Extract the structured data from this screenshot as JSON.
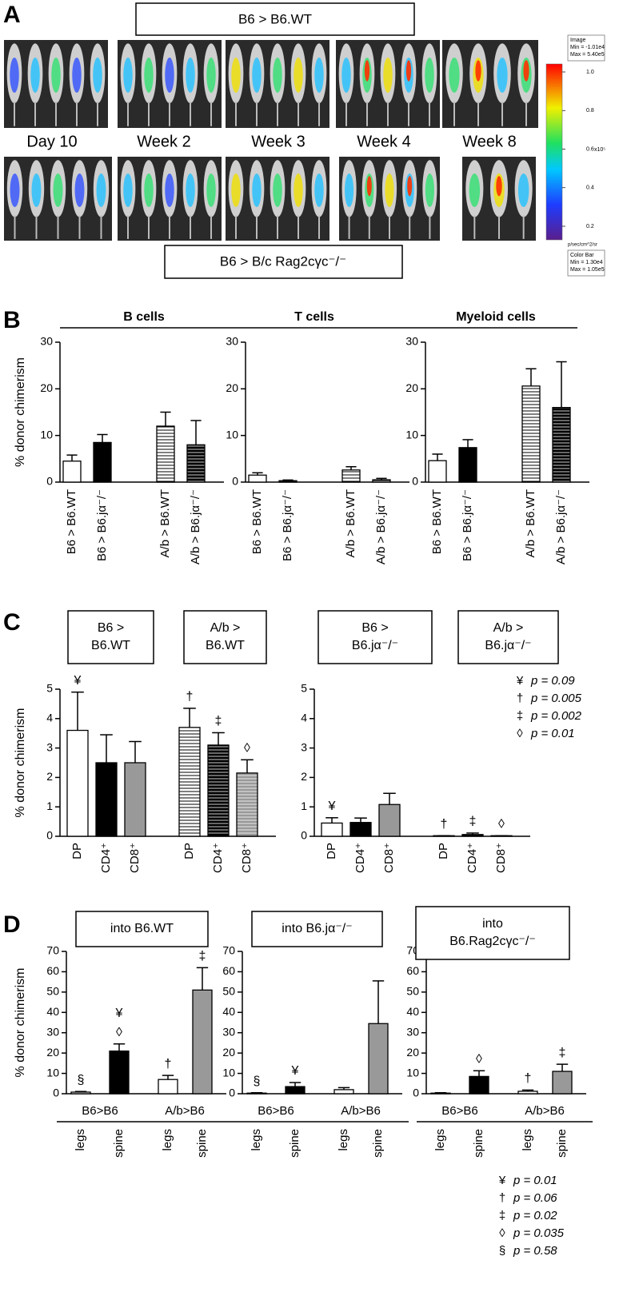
{
  "panel_labels": [
    "A",
    "B",
    "C",
    "D"
  ],
  "panel_a": {
    "top_box": "B6 > B6.WT",
    "timepoints": [
      "Day 10",
      "Week 2",
      "Week 3",
      "Week 4",
      "Week 8"
    ],
    "bottom_box": "B6 > B/c Rag2cγc⁻/⁻",
    "colorbar": {
      "image_box": [
        "Image",
        "Min = -1.01e4",
        "Max = 5.40e5"
      ],
      "ticks": [
        {
          "value": 1,
          "label": "1.0"
        },
        0.8,
        0.6,
        0.4,
        0.2
      ],
      "exponent": "x10⁵",
      "unit": "p/sec/cm^2/sr",
      "bar_box": [
        "Color Bar",
        "Min = 1.30e4",
        "Max = 1.05e5"
      ]
    }
  },
  "chart_data": [
    {
      "type": "bar",
      "title": "B cells",
      "y_label": "% donor chimerism",
      "categories": [
        "B6 > B6.WT",
        "B6 > B6.jα⁻/⁻",
        "A/b > B6.WT",
        "A/b > B6.jα⁻/⁻"
      ],
      "values": [
        4.5,
        8.5,
        12,
        8
      ],
      "errors": [
        1.3,
        1.7,
        3,
        5.2
      ],
      "fills": [
        "#ffffff",
        "#000000",
        "#ffffff",
        "#000000"
      ],
      "hatch": [
        false,
        false,
        true,
        true
      ],
      "ylim": [
        0,
        30
      ],
      "yticks": [
        0,
        10,
        20,
        30
      ]
    },
    {
      "type": "bar",
      "title": "T cells",
      "categories": [
        "B6 > B6.WT",
        "B6 > B6.jα⁻/⁻",
        "A/b > B6.WT",
        "A/b > B6.jα⁻/⁻"
      ],
      "values": [
        1.5,
        0.3,
        2.6,
        0.5
      ],
      "errors": [
        0.5,
        0.15,
        0.7,
        0.3
      ],
      "fills": [
        "#ffffff",
        "#000000",
        "#ffffff",
        "#000000"
      ],
      "hatch": [
        false,
        false,
        true,
        true
      ],
      "ylim": [
        0,
        30
      ],
      "yticks": [
        0,
        10,
        20,
        30
      ]
    },
    {
      "type": "bar",
      "title": "Myeloid cells",
      "categories": [
        "B6 > B6.WT",
        "B6 > B6.jα⁻/⁻",
        "A/b > B6.WT",
        "A/b > B6.jα⁻/⁻"
      ],
      "values": [
        4.6,
        7.4,
        20.6,
        16
      ],
      "errors": [
        1.4,
        1.7,
        3.7,
        9.8
      ],
      "fills": [
        "#ffffff",
        "#000000",
        "#ffffff",
        "#000000"
      ],
      "hatch": [
        false,
        false,
        true,
        true
      ],
      "ylim": [
        0,
        30
      ],
      "yticks": [
        0,
        10,
        20,
        30
      ]
    },
    {
      "type": "bar",
      "y_label": "% donor chimerism",
      "group_titles": [
        [
          "B6 >",
          "B6.WT"
        ],
        [
          "A/b >",
          "B6.WT"
        ]
      ],
      "categories": [
        "DP",
        "CD4⁺",
        "CD8⁺",
        "DP",
        "CD4⁺",
        "CD8⁺"
      ],
      "values": [
        3.6,
        2.5,
        2.5,
        3.7,
        3.1,
        2.15
      ],
      "errors": [
        1.3,
        0.95,
        0.72,
        0.65,
        0.42,
        0.45
      ],
      "fills": [
        "#ffffff",
        "#000000",
        "#999999",
        "#ffffff",
        "#000000",
        "#999999"
      ],
      "hatch": [
        false,
        false,
        false,
        true,
        true,
        true
      ],
      "annotations": [
        [
          "¥"
        ],
        [],
        [],
        [
          "†"
        ],
        [
          "‡"
        ],
        [
          "◊"
        ]
      ],
      "ylim": [
        0,
        5
      ],
      "yticks": [
        0,
        1,
        2,
        3,
        4,
        5
      ]
    },
    {
      "type": "bar",
      "group_titles": [
        [
          "B6 >",
          "B6.jα⁻/⁻"
        ],
        [
          "A/b >",
          "B6.jα⁻/⁻"
        ]
      ],
      "categories": [
        "DP",
        "CD4⁺",
        "CD8⁺",
        "DP",
        "CD4⁺",
        "CD8⁺"
      ],
      "values": [
        0.45,
        0.47,
        1.08,
        0.02,
        0.06,
        0.02
      ],
      "errors": [
        0.18,
        0.15,
        0.38,
        0,
        0.05,
        0
      ],
      "fills": [
        "#ffffff",
        "#000000",
        "#999999",
        "#ffffff",
        "#000000",
        "#999999"
      ],
      "hatch": [
        false,
        false,
        false,
        true,
        true,
        true
      ],
      "annotations": [
        [
          "¥"
        ],
        [],
        [],
        [
          "†"
        ],
        [
          "‡"
        ],
        [
          "◊"
        ]
      ],
      "ylim": [
        0,
        5
      ],
      "yticks": [
        0,
        1,
        2,
        3,
        4,
        5
      ],
      "legend": [
        {
          "symbol": "¥",
          "text": "p = 0.09"
        },
        {
          "symbol": "†",
          "text": "p = 0.005"
        },
        {
          "symbol": "‡",
          "text": "p = 0.002"
        },
        {
          "symbol": "◊",
          "text": "p = 0.01"
        }
      ]
    },
    {
      "type": "bar",
      "title": [
        "into B6.WT"
      ],
      "y_label": "% donor chimerism",
      "groups": [
        "B6>B6",
        "A/b>B6"
      ],
      "categories": [
        "legs",
        "spine",
        "legs",
        "spine"
      ],
      "values": [
        0.8,
        21,
        7,
        51
      ],
      "errors": [
        0.3,
        3.5,
        2,
        11
      ],
      "fills": [
        "#ffffff",
        "#000000",
        "#ffffff",
        "#999999"
      ],
      "hatch": [
        false,
        false,
        false,
        false
      ],
      "annotations": [
        [
          "§"
        ],
        [
          "¥",
          "◊"
        ],
        [
          "†"
        ],
        [
          "‡"
        ]
      ],
      "ylim": [
        0,
        70
      ],
      "yticks": [
        0,
        10,
        20,
        30,
        40,
        50,
        60,
        70
      ]
    },
    {
      "type": "bar",
      "title": [
        "into B6.jα⁻/⁻"
      ],
      "groups": [
        "B6>B6",
        "A/b>B6"
      ],
      "categories": [
        "legs",
        "spine",
        "legs",
        "spine"
      ],
      "values": [
        0.3,
        3.5,
        2,
        34.5
      ],
      "errors": [
        0.2,
        2,
        1,
        21
      ],
      "fills": [
        "#ffffff",
        "#000000",
        "#ffffff",
        "#999999"
      ],
      "hatch": [
        false,
        false,
        false,
        false
      ],
      "annotations": [
        [
          "§"
        ],
        [
          "¥"
        ],
        [],
        []
      ],
      "ylim": [
        0,
        70
      ],
      "yticks": [
        0,
        10,
        20,
        30,
        40,
        50,
        60,
        70
      ]
    },
    {
      "type": "bar",
      "title": [
        "into",
        "B6.Rag2cγc⁻/⁻"
      ],
      "groups": [
        "B6>B6",
        "A/b>B6"
      ],
      "categories": [
        "legs",
        "spine",
        "legs",
        "spine"
      ],
      "values": [
        0.3,
        8.5,
        1.2,
        11
      ],
      "errors": [
        0.2,
        2.8,
        0.6,
        3.5
      ],
      "fills": [
        "#ffffff",
        "#000000",
        "#ffffff",
        "#999999"
      ],
      "hatch": [
        false,
        false,
        false,
        false
      ],
      "annotations": [
        [],
        [
          "◊"
        ],
        [
          "†"
        ],
        [
          "‡"
        ]
      ],
      "ylim": [
        0,
        70
      ],
      "yticks": [
        0,
        10,
        20,
        30,
        40,
        50,
        60,
        70
      ],
      "legend": [
        {
          "symbol": "¥",
          "text": "p = 0.01"
        },
        {
          "symbol": "†",
          "text": "p = 0.06"
        },
        {
          "symbol": "‡",
          "text": "p = 0.02"
        },
        {
          "symbol": "◊",
          "text": "p = 0.035"
        },
        {
          "symbol": "§",
          "text": "p = 0.58"
        }
      ]
    }
  ]
}
